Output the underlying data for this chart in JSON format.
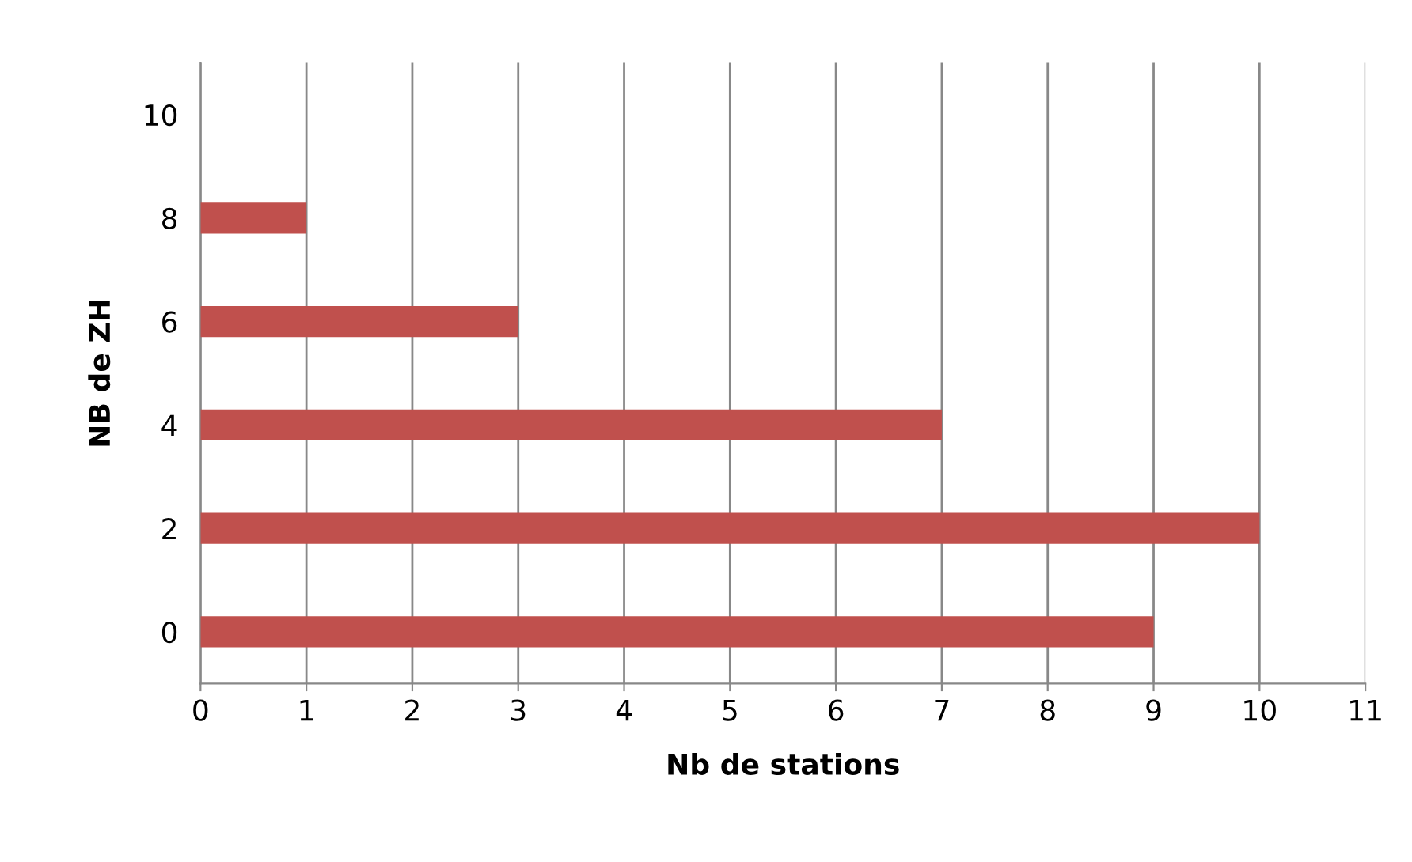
{
  "chart_data": {
    "type": "bar",
    "orientation": "horizontal",
    "xlabel": "Nb de stations",
    "ylabel": "NB de ZH",
    "categories": [
      "10",
      "8",
      "6",
      "4",
      "2",
      "0"
    ],
    "values": [
      null,
      1,
      3,
      7,
      10,
      9
    ],
    "color": "#c0504d",
    "xlim": [
      0,
      11
    ],
    "xticks": [
      0,
      1,
      2,
      3,
      4,
      5,
      6,
      7,
      8,
      9,
      10,
      11
    ],
    "grid": "x",
    "legend": false
  }
}
